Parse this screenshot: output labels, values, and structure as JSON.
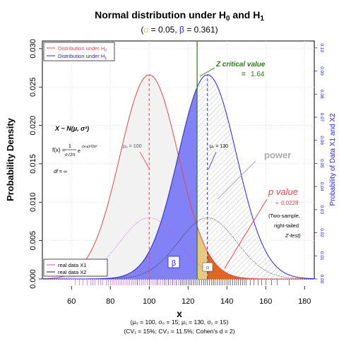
{
  "title": {
    "main": "Normal distribution under H",
    "sub0": "0",
    "and": " and H",
    "sub1": "1"
  },
  "subtitle": {
    "alpha_sym": "α",
    "alpha_val": " = 0.05, ",
    "beta_sym": "β",
    "beta_val": " = 0.361)",
    "open": "("
  },
  "axes": {
    "xlabel": "x",
    "ylabel_left": "Probability Density",
    "ylabel_right": "Probability of Data X1 and X2"
  },
  "legend_top": [
    {
      "label": "Distribution under H",
      "sub": "0",
      "color": "#e8474e"
    },
    {
      "label": "Distribution under H",
      "sub": "1",
      "color": "#2222ee"
    }
  ],
  "legend_bottom": [
    {
      "label": "real data X1",
      "color": "#cc44ee"
    },
    {
      "label": "real data X2",
      "color": "#222222"
    }
  ],
  "annotations": {
    "zcrit_title": "Z critical value",
    "zcrit_eq": "=",
    "zcrit_value": "1.64",
    "power": "power",
    "pvalue_title": "p value",
    "pvalue_eq": "=",
    "pvalue_value": "0.0228",
    "note1": "(Two-sample,",
    "note2": "right-tailed",
    "note3": "Z-test)",
    "formula_x": "X ~ N(μ, σ²)",
    "formula_fx": "f(x) =",
    "formula_df": "df = ∞",
    "mu0_label": "μ₀ = 100",
    "mu1_label": "μ₁ = 130",
    "beta_box": "β",
    "alpha_box": "α"
  },
  "footer": {
    "line1": "(μ₀ = 100, σ₀ = 15; μ₁ = 130, σ₁ = 15)",
    "line2": "(CV₁ = 15%; CV₂ = 11.5%; Cohen's d = 2)"
  },
  "colors": {
    "h0": "#e8474e",
    "h1": "#2222ee",
    "beta_fill": "#7b7bf5",
    "alpha_fill": "#e8c87a",
    "pvalue_fill": "#e0661a",
    "crit_line": "#2e7d12",
    "zcrit_text": "#2e7d12",
    "power_text": "#aaaaaa",
    "pvalue_text": "#e8474e"
  },
  "chart_data": {
    "type": "area",
    "xlim": [
      45,
      185
    ],
    "ylim_left": [
      0,
      0.031
    ],
    "ylim_right": [
      0,
      0.103
    ],
    "x_ticks": [
      60,
      80,
      100,
      120,
      140,
      160,
      180
    ],
    "y_ticks_left": [
      0.0,
      0.005,
      0.01,
      0.015,
      0.02,
      0.025,
      0.03
    ],
    "y_ticks_left_labels": [
      "0.000",
      "0.005",
      "0.010",
      "0.015",
      "0.020",
      "0.025",
      "0.030"
    ],
    "y_ticks_right": [
      0.0,
      0.01,
      0.02,
      0.03,
      0.04,
      0.05,
      0.06,
      0.07,
      0.08,
      0.09,
      0.1
    ],
    "y_ticks_right_labels": [
      "0.00",
      "0.01",
      "0.02",
      "0.03",
      "0.04",
      "0.05",
      "0.06",
      "0.07",
      "0.08",
      "0.09",
      "0.10"
    ],
    "series": [
      {
        "name": "Distribution under H0",
        "distribution": "normal",
        "mean": 100,
        "sd": 15
      },
      {
        "name": "Distribution under H1",
        "distribution": "normal",
        "mean": 130,
        "sd": 15
      }
    ],
    "real_data_density": [
      {
        "name": "real data X1",
        "mean": 100,
        "sd": 15
      },
      {
        "name": "real data X2",
        "mean": 130,
        "sd": 15
      }
    ],
    "critical_value_x": 124.67,
    "observed_x": 130,
    "rug_x1": [
      62,
      64,
      66,
      68,
      70,
      71,
      72,
      74,
      75,
      76,
      78,
      79,
      80,
      81,
      82,
      83,
      84,
      85,
      86,
      87,
      88,
      89,
      90,
      91,
      92,
      93,
      94,
      95,
      96,
      97,
      98,
      99,
      100,
      101,
      102,
      103,
      104,
      105,
      106,
      107,
      108,
      109,
      110,
      111,
      112,
      113,
      114,
      115,
      116,
      117,
      118,
      119,
      120,
      121,
      122,
      123,
      124,
      126,
      128,
      130,
      133,
      136,
      140
    ],
    "rug_x2": [
      94,
      100,
      104,
      108,
      110,
      112,
      114,
      116,
      117,
      118,
      119,
      120,
      121,
      122,
      123,
      124,
      125,
      126,
      127,
      128,
      129,
      130,
      131,
      132,
      133,
      134,
      135,
      136,
      137,
      138,
      139,
      140,
      141,
      142,
      143,
      144,
      145,
      146,
      147,
      148,
      149,
      150,
      152,
      154,
      156,
      158,
      160,
      163,
      166,
      172
    ]
  }
}
